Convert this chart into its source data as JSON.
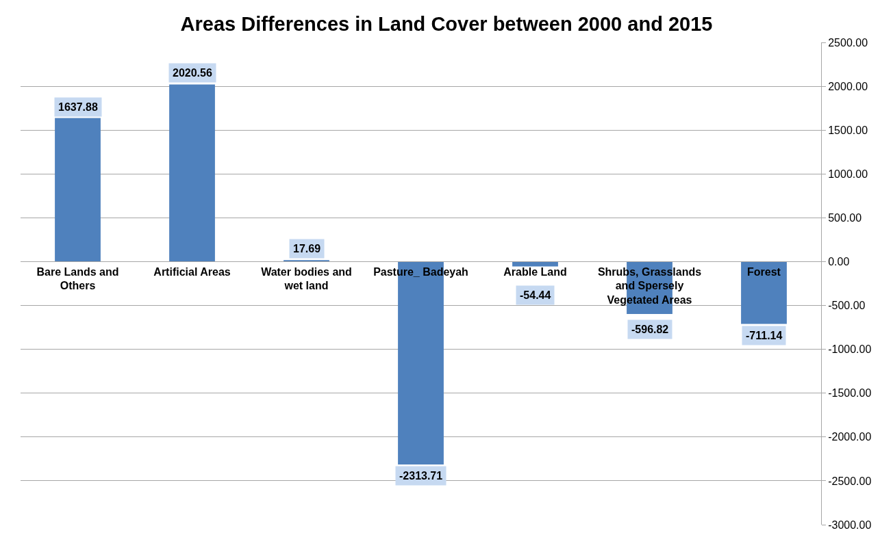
{
  "chart_data": {
    "type": "bar",
    "title": "Areas Differences in Land Cover between 2000 and 2015",
    "categories": [
      "Bare Lands and Others",
      "Artificial Areas",
      "Water bodies and wet land",
      "Pasture_ Badeyah",
      "Arable Land",
      "Shrubs, Grasslands and Spersely Vegetated Areas",
      "Forest"
    ],
    "values": [
      1637.88,
      2020.56,
      17.69,
      -2313.71,
      -54.44,
      -596.82,
      -711.14
    ],
    "color": "#4f81bd",
    "data_labels": true,
    "grid": "y",
    "ylim": [
      -3000,
      2500
    ],
    "yticks": [
      {
        "value": 2500,
        "label": "2500.00"
      },
      {
        "value": 2000,
        "label": "2000.00"
      },
      {
        "value": 1500,
        "label": "1500.00"
      },
      {
        "value": 1000,
        "label": "1000.00"
      },
      {
        "value": 500,
        "label": "500.00"
      },
      {
        "value": 0,
        "label": "0.00"
      },
      {
        "value": -500,
        "label": "-500.00"
      },
      {
        "value": -1000,
        "label": "-1000.00"
      },
      {
        "value": -1500,
        "label": "-1500.00"
      },
      {
        "value": -2000,
        "label": "-2000.00"
      },
      {
        "value": -2500,
        "label": "-2500.00"
      },
      {
        "value": -3000,
        "label": "-3000.00"
      }
    ]
  }
}
